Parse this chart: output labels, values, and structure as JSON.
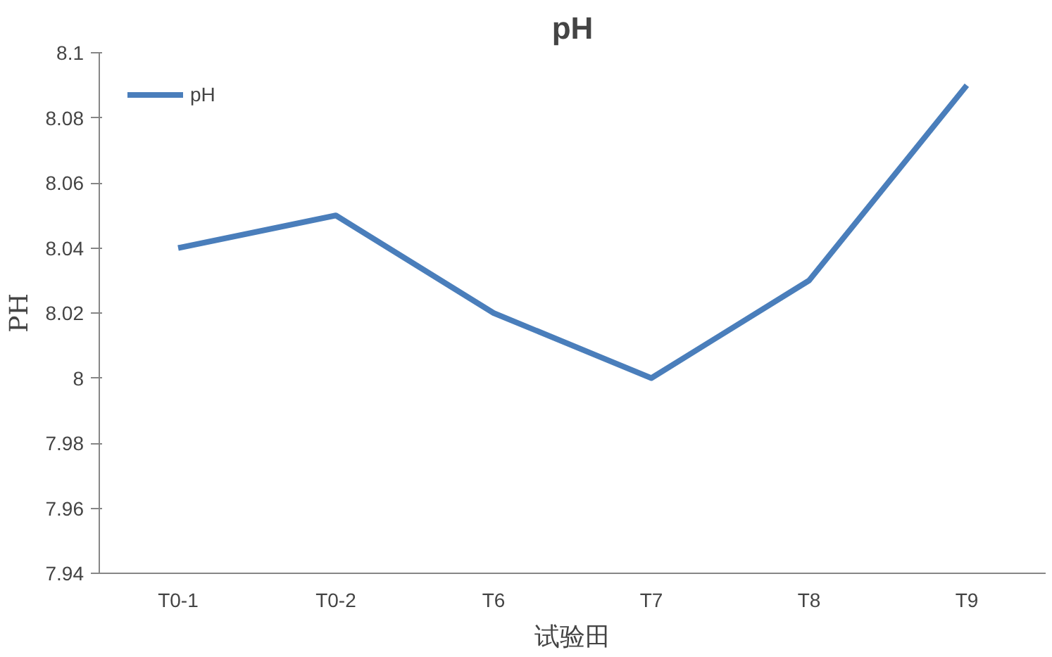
{
  "chart_data": {
    "type": "line",
    "title": "pH",
    "xlabel": "试验田",
    "ylabel": "PH",
    "categories": [
      "T0-1",
      "T0-2",
      "T6",
      "T7",
      "T8",
      "T9"
    ],
    "series": [
      {
        "name": "pH",
        "color": "#4a7ebb",
        "values": [
          8.04,
          8.05,
          8.02,
          8.0,
          8.03,
          8.09
        ]
      }
    ],
    "ylim": [
      7.94,
      8.1
    ],
    "yticks": [
      7.94,
      7.96,
      7.98,
      8,
      8.02,
      8.04,
      8.06,
      8.08,
      8.1
    ],
    "grid": false,
    "legend": "top left",
    "marker": "none",
    "line_style": "solid"
  }
}
